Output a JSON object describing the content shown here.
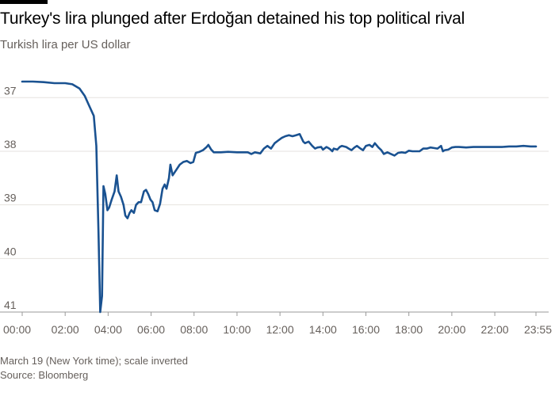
{
  "title": "Turkey's lira plunged after Erdoğan detained his top political rival",
  "subtitle": "Turkish lira per US dollar",
  "footnote": "March 19 (New York time); scale inverted",
  "source": "Source: Bloomberg",
  "colors": {
    "line": "#1a5291",
    "grid": "#e6e2df",
    "axis_text": "#66605c",
    "baseline": "#999999"
  },
  "chart_data": {
    "type": "line",
    "title": "Turkey's lira plunged after Erdoğan detained his top political rival",
    "ylabel": "Turkish lira per US dollar",
    "xlabel": "",
    "y_inverted": true,
    "ylim": [
      36.7,
      41
    ],
    "xlim": [
      0,
      1435
    ],
    "grid": true,
    "y_ticks": [
      37,
      38,
      39,
      40,
      41
    ],
    "y_tick_labels": [
      "37",
      "38",
      "39",
      "40",
      "41"
    ],
    "x_ticks": [
      0,
      120,
      240,
      360,
      480,
      600,
      720,
      840,
      960,
      1080,
      1200,
      1320,
      1435
    ],
    "x_tick_labels": [
      "00:00",
      "02:00",
      "04:00",
      "06:00",
      "08:00",
      "10:00",
      "12:00",
      "14:00",
      "16:00",
      "18:00",
      "20:00",
      "22:00",
      "23:55"
    ],
    "series": [
      {
        "points": [
          [
            0,
            36.7
          ],
          [
            30,
            36.7
          ],
          [
            60,
            36.71
          ],
          [
            90,
            36.73
          ],
          [
            120,
            36.73
          ],
          [
            140,
            36.75
          ],
          [
            160,
            36.83
          ],
          [
            175,
            36.97
          ],
          [
            185,
            37.12
          ],
          [
            200,
            37.34
          ],
          [
            207,
            37.9
          ],
          [
            213,
            39.5
          ],
          [
            218,
            41.0
          ],
          [
            223,
            40.7
          ],
          [
            227,
            38.65
          ],
          [
            232,
            38.8
          ],
          [
            238,
            39.1
          ],
          [
            243,
            39.05
          ],
          [
            250,
            38.9
          ],
          [
            258,
            38.75
          ],
          [
            264,
            38.45
          ],
          [
            269,
            38.75
          ],
          [
            276,
            38.85
          ],
          [
            283,
            39.0
          ],
          [
            288,
            39.2
          ],
          [
            294,
            39.25
          ],
          [
            300,
            39.15
          ],
          [
            305,
            39.1
          ],
          [
            312,
            39.15
          ],
          [
            318,
            39.0
          ],
          [
            325,
            38.95
          ],
          [
            332,
            38.95
          ],
          [
            340,
            38.75
          ],
          [
            346,
            38.72
          ],
          [
            352,
            38.8
          ],
          [
            358,
            38.9
          ],
          [
            364,
            38.95
          ],
          [
            370,
            39.1
          ],
          [
            378,
            39.12
          ],
          [
            385,
            38.98
          ],
          [
            392,
            38.7
          ],
          [
            398,
            38.62
          ],
          [
            403,
            38.7
          ],
          [
            410,
            38.5
          ],
          [
            414,
            38.25
          ],
          [
            420,
            38.45
          ],
          [
            430,
            38.35
          ],
          [
            440,
            38.25
          ],
          [
            450,
            38.2
          ],
          [
            460,
            38.18
          ],
          [
            470,
            38.22
          ],
          [
            478,
            38.2
          ],
          [
            485,
            38.03
          ],
          [
            495,
            38.01
          ],
          [
            505,
            37.98
          ],
          [
            515,
            37.92
          ],
          [
            520,
            37.88
          ],
          [
            528,
            37.97
          ],
          [
            535,
            38.02
          ],
          [
            555,
            38.02
          ],
          [
            575,
            38.01
          ],
          [
            600,
            38.02
          ],
          [
            630,
            38.02
          ],
          [
            640,
            38.05
          ],
          [
            650,
            38.02
          ],
          [
            665,
            38.04
          ],
          [
            675,
            37.95
          ],
          [
            685,
            37.9
          ],
          [
            695,
            37.95
          ],
          [
            705,
            37.85
          ],
          [
            715,
            37.8
          ],
          [
            725,
            37.75
          ],
          [
            735,
            37.72
          ],
          [
            745,
            37.7
          ],
          [
            755,
            37.72
          ],
          [
            765,
            37.7
          ],
          [
            775,
            37.68
          ],
          [
            785,
            37.82
          ],
          [
            790,
            37.85
          ],
          [
            800,
            37.82
          ],
          [
            810,
            37.9
          ],
          [
            818,
            37.95
          ],
          [
            825,
            37.93
          ],
          [
            835,
            37.92
          ],
          [
            840,
            37.97
          ],
          [
            850,
            37.92
          ],
          [
            855,
            37.94
          ],
          [
            860,
            37.96
          ],
          [
            866,
            38.0
          ],
          [
            870,
            37.95
          ],
          [
            880,
            37.97
          ],
          [
            887,
            37.92
          ],
          [
            893,
            37.9
          ],
          [
            905,
            37.92
          ],
          [
            912,
            37.95
          ],
          [
            920,
            37.98
          ],
          [
            928,
            37.93
          ],
          [
            935,
            37.9
          ],
          [
            945,
            37.95
          ],
          [
            952,
            37.98
          ],
          [
            960,
            37.9
          ],
          [
            970,
            37.88
          ],
          [
            978,
            37.92
          ],
          [
            985,
            37.85
          ],
          [
            995,
            37.93
          ],
          [
            1003,
            37.98
          ],
          [
            1010,
            38.05
          ],
          [
            1020,
            38.02
          ],
          [
            1030,
            38.05
          ],
          [
            1040,
            38.08
          ],
          [
            1050,
            38.03
          ],
          [
            1060,
            38.02
          ],
          [
            1070,
            38.03
          ],
          [
            1080,
            37.99
          ],
          [
            1090,
            38.0
          ],
          [
            1100,
            38.0
          ],
          [
            1110,
            38.0
          ],
          [
            1120,
            37.95
          ],
          [
            1130,
            37.95
          ],
          [
            1140,
            37.93
          ],
          [
            1150,
            37.94
          ],
          [
            1160,
            37.95
          ],
          [
            1170,
            37.9
          ],
          [
            1175,
            38.0
          ],
          [
            1180,
            37.98
          ],
          [
            1190,
            37.97
          ],
          [
            1200,
            37.93
          ],
          [
            1210,
            37.92
          ],
          [
            1220,
            37.92
          ],
          [
            1240,
            37.93
          ],
          [
            1260,
            37.92
          ],
          [
            1280,
            37.92
          ],
          [
            1300,
            37.92
          ],
          [
            1320,
            37.92
          ],
          [
            1340,
            37.92
          ],
          [
            1360,
            37.91
          ],
          [
            1380,
            37.91
          ],
          [
            1400,
            37.9
          ],
          [
            1420,
            37.91
          ],
          [
            1435,
            37.91
          ]
        ]
      }
    ]
  }
}
